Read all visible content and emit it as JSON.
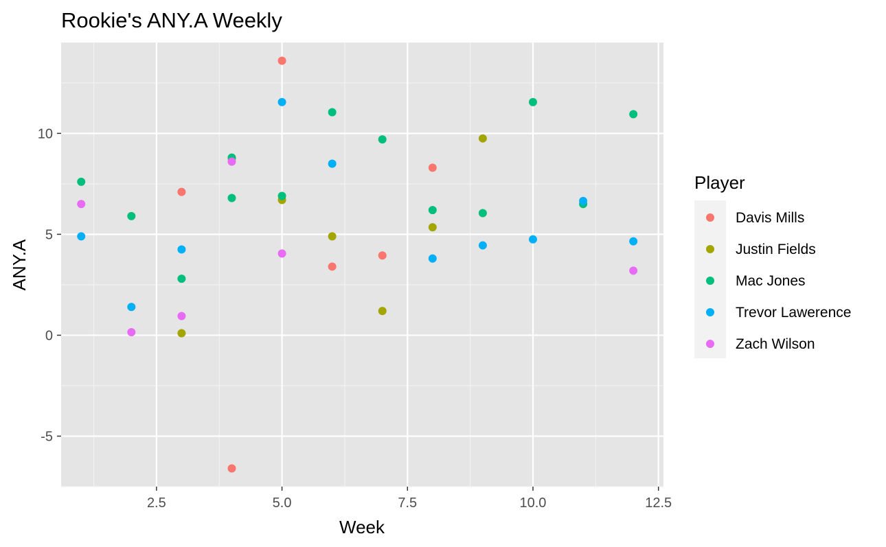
{
  "chart_data": {
    "type": "scatter",
    "title": "Rookie's ANY.A Weekly",
    "xlabel": "Week",
    "ylabel": "ANY.A",
    "xlim": [
      0.6,
      12.6
    ],
    "ylim": [
      -7.5,
      14.5
    ],
    "x_ticks": [
      2.5,
      5.0,
      7.5,
      10.0,
      12.5
    ],
    "x_tick_labels": [
      "2.5",
      "5.0",
      "7.5",
      "10.0",
      "12.5"
    ],
    "y_ticks": [
      -5,
      0,
      5,
      10
    ],
    "y_tick_labels": [
      "-5",
      "0",
      "5",
      "10"
    ],
    "grid": true,
    "legend": {
      "title": "Player",
      "position": "right"
    },
    "series": [
      {
        "name": "Davis Mills",
        "color": "#F8766D",
        "points": [
          [
            3,
            7.1
          ],
          [
            4,
            -6.6
          ],
          [
            5,
            13.6
          ],
          [
            6,
            3.4
          ],
          [
            7,
            3.95
          ],
          [
            8,
            8.3
          ]
        ]
      },
      {
        "name": "Justin Fields",
        "color": "#A3A500",
        "points": [
          [
            3,
            0.1
          ],
          [
            4,
            8.75
          ],
          [
            5,
            6.7
          ],
          [
            6,
            4.9
          ],
          [
            7,
            1.2
          ],
          [
            8,
            5.35
          ],
          [
            9,
            9.75
          ]
        ]
      },
      {
        "name": "Mac Jones",
        "color": "#00BF7D",
        "points": [
          [
            1,
            7.6
          ],
          [
            2,
            5.9
          ],
          [
            3,
            2.8
          ],
          [
            4,
            8.8
          ],
          [
            4,
            6.8
          ],
          [
            5,
            6.9
          ],
          [
            6,
            11.05
          ],
          [
            7,
            9.7
          ],
          [
            8,
            6.2
          ],
          [
            9,
            6.05
          ],
          [
            10,
            11.55
          ],
          [
            11,
            6.5
          ],
          [
            12,
            10.95
          ]
        ]
      },
      {
        "name": "Trevor Lawerence",
        "color": "#00B0F6",
        "points": [
          [
            1,
            4.9
          ],
          [
            2,
            1.4
          ],
          [
            3,
            4.25
          ],
          [
            5,
            11.55
          ],
          [
            6,
            8.5
          ],
          [
            8,
            3.8
          ],
          [
            9,
            4.45
          ],
          [
            10,
            4.75
          ],
          [
            11,
            6.65
          ],
          [
            12,
            4.65
          ]
        ]
      },
      {
        "name": "Zach Wilson",
        "color": "#E76BF3",
        "points": [
          [
            1,
            6.5
          ],
          [
            2,
            0.15
          ],
          [
            3,
            0.95
          ],
          [
            4,
            8.6
          ],
          [
            5,
            4.05
          ],
          [
            12,
            3.2
          ]
        ]
      }
    ]
  }
}
